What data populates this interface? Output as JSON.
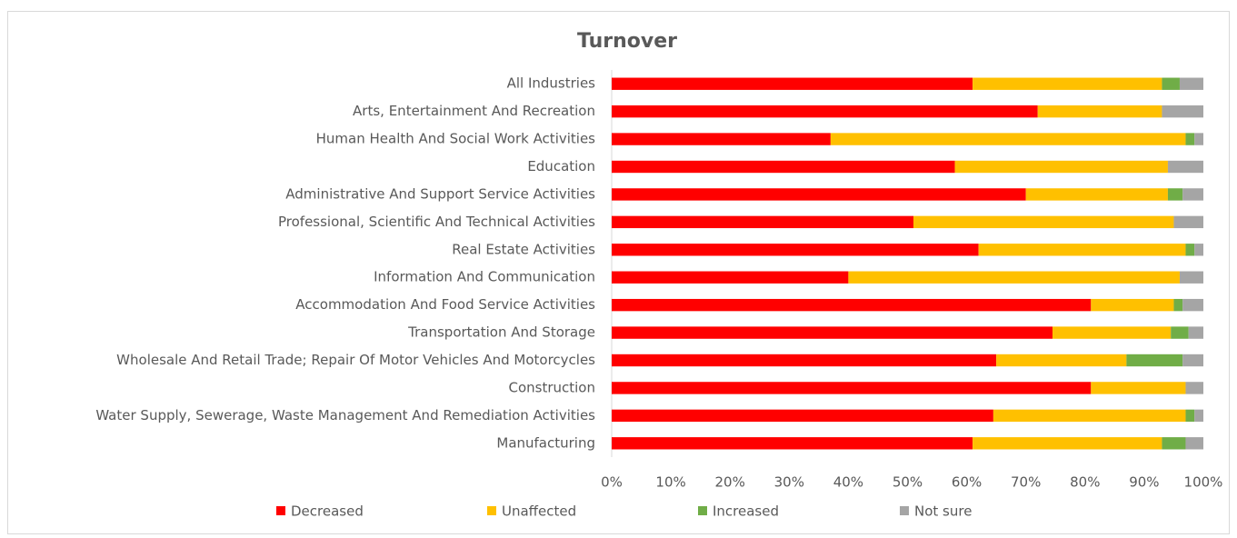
{
  "chart_data": {
    "type": "stacked_bar_horizontal",
    "title": "Turnover",
    "categories": [
      "All Industries",
      "Arts, Entertainment And Recreation",
      "Human Health And Social Work Activities",
      "Education",
      "Administrative And Support Service Activities",
      "Professional, Scientific And Technical Activities",
      "Real Estate Activities",
      "Information And Communication",
      "Accommodation And Food Service Activities",
      "Transportation And Storage",
      "Wholesale And Retail Trade; Repair Of Motor Vehicles And Motorcycles",
      "Construction",
      "Water Supply, Sewerage, Waste Management And Remediation Activities",
      "Manufacturing"
    ],
    "series": [
      {
        "name": "Decreased",
        "color": "#ff0000",
        "values": [
          61,
          72,
          37,
          58,
          70,
          51,
          62,
          40,
          81,
          74.5,
          65,
          81,
          64.5,
          61
        ]
      },
      {
        "name": "Unaffected",
        "color": "#ffc000",
        "values": [
          32,
          21,
          60,
          36,
          24,
          44,
          35,
          56,
          14,
          20,
          22,
          16,
          32.5,
          32
        ]
      },
      {
        "name": "Increased",
        "color": "#70ad47",
        "values": [
          3,
          0,
          1.5,
          0,
          2.5,
          0,
          1.5,
          0,
          1.5,
          3,
          9.5,
          0,
          1.5,
          4
        ]
      },
      {
        "name": "Not sure",
        "color": "#a5a5a5",
        "values": [
          4,
          7,
          1.5,
          6,
          3.5,
          5,
          1.5,
          4,
          3.5,
          2.5,
          3.5,
          3,
          1.5,
          3
        ]
      }
    ],
    "xlim": [
      0,
      100
    ],
    "xticks": [
      {
        "value": 0,
        "label": "0%"
      },
      {
        "value": 10,
        "label": "10%"
      },
      {
        "value": 20,
        "label": "20%"
      },
      {
        "value": 30,
        "label": "30%"
      },
      {
        "value": 40,
        "label": "40%"
      },
      {
        "value": 50,
        "label": "50%"
      },
      {
        "value": 60,
        "label": "60%"
      },
      {
        "value": 70,
        "label": "70%"
      },
      {
        "value": 80,
        "label": "80%"
      },
      {
        "value": 90,
        "label": "90%"
      },
      {
        "value": 100,
        "label": "100%"
      }
    ],
    "grid": false,
    "legend": "bottom"
  }
}
